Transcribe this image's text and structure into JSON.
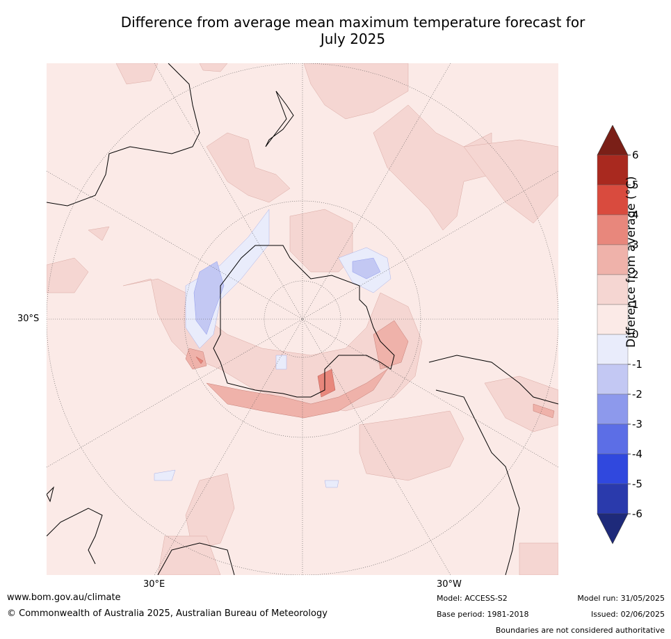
{
  "title_line1": "Difference from average mean maximum temperature forecast for",
  "title_line2": "July 2025",
  "map": {
    "lat_label": "30°S",
    "lon_labels": [
      "30°E",
      "30°W"
    ]
  },
  "colorbar": {
    "title": "Difference from average (°C)",
    "ticks": [
      "6",
      "5",
      "4",
      "3",
      "2",
      "1",
      "0",
      "-1",
      "-2",
      "-3",
      "-4",
      "-5",
      "-6"
    ],
    "colors_top_to_bottom": [
      "#7a1f17",
      "#a9291f",
      "#d94b3e",
      "#e8877c",
      "#efb2aa",
      "#f5d6d2",
      "#fbeae7",
      "#e9ecfb",
      "#c3c8f3",
      "#8d99ec",
      "#5c6ee6",
      "#3048de",
      "#2a3aac",
      "#1e2a7a"
    ]
  },
  "footer": {
    "website": "www.bom.gov.au/climate",
    "copyright": "© Commonwealth of Australia 2025, Australian Bureau of Meteorology",
    "model": "Model: ACCESS-S2",
    "base_period": "Base period: 1981-2018",
    "model_run": "Model run: 31/05/2025",
    "issued": "Issued: 02/06/2025",
    "disclaimer": "Boundaries are not considered authoritative"
  }
}
